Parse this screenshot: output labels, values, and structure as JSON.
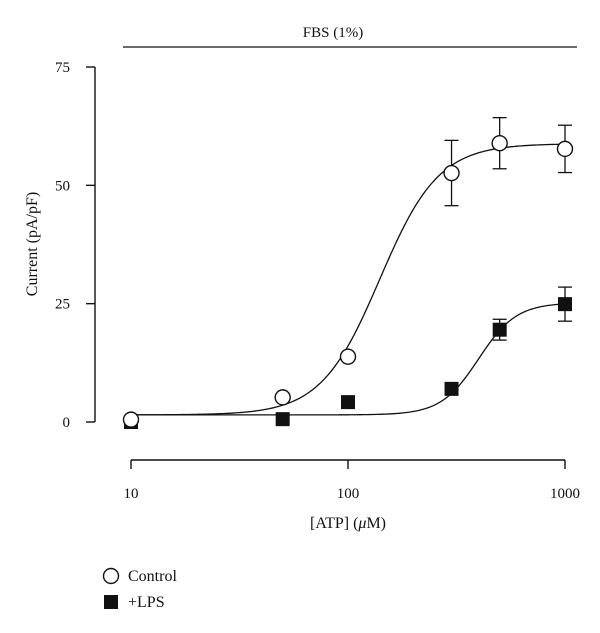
{
  "chart_data": {
    "type": "scatter",
    "header": "FBS (1%)",
    "xlabel": "[ATP] (μM)",
    "ylabel": "Current (pA/pF)",
    "xscale": "log",
    "xlim": [
      10,
      1000
    ],
    "ylim": [
      0,
      75
    ],
    "xticks": [
      10,
      100,
      1000
    ],
    "xtick_labels": [
      "10",
      "100",
      "1000"
    ],
    "yticks": [
      0,
      25,
      50,
      75
    ],
    "ytick_labels": [
      "0",
      "25",
      "50",
      "75"
    ],
    "legend_position": "bottom-left",
    "series": [
      {
        "name": "Control",
        "marker": "open-circle",
        "points": [
          {
            "x": 10,
            "y": 0.5,
            "err": 0
          },
          {
            "x": 50,
            "y": 5.2,
            "err": 0
          },
          {
            "x": 100,
            "y": 13.8,
            "err": 0
          },
          {
            "x": 300,
            "y": 52.6,
            "err": 6.9
          },
          {
            "x": 500,
            "y": 58.9,
            "err": 5.4
          },
          {
            "x": 1000,
            "y": 57.7,
            "err": 5.0
          }
        ],
        "fit": {
          "bottom": 1.5,
          "top": 58.8,
          "ec50": 140,
          "hill": 3.2
        }
      },
      {
        "name": "+LPS",
        "marker": "filled-square",
        "points": [
          {
            "x": 10,
            "y": 0.0,
            "err": 0
          },
          {
            "x": 50,
            "y": 0.6,
            "err": 0
          },
          {
            "x": 100,
            "y": 4.2,
            "err": 0
          },
          {
            "x": 300,
            "y": 7.0,
            "err": 0
          },
          {
            "x": 500,
            "y": 19.5,
            "err": 2.2
          },
          {
            "x": 1000,
            "y": 24.9,
            "err": 3.6
          }
        ],
        "fit": {
          "bottom": 1.5,
          "top": 25.2,
          "ec50": 400,
          "hill": 5.0
        }
      }
    ]
  }
}
